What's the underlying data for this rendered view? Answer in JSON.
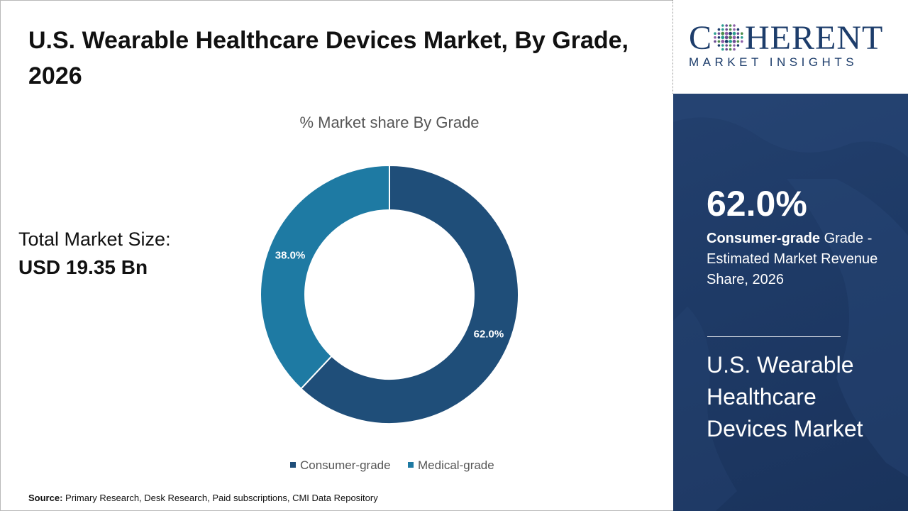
{
  "page": {
    "title": "U.S. Wearable Healthcare Devices Market, By Grade, 2026",
    "total_label": "Total Market Size:",
    "total_value": "USD 19.35 Bn",
    "source_label": "Source:",
    "source_text": " Primary Research, Desk Research, Paid subscriptions, CMI Data Repository"
  },
  "logo": {
    "word_prefix": "C",
    "word_suffix": "HERENT",
    "sub": "MARKET INSIGHTS"
  },
  "panel": {
    "big_value": "62.0%",
    "highlight": "Consumer-grade",
    "desc": " Grade - Estimated Market Revenue Share, 2026",
    "market_name": "U.S. Wearable Healthcare Devices Market"
  },
  "colors": {
    "consumer": "#1f4e79",
    "medical": "#1e7aa3",
    "panel_bg": "#1e3a66",
    "logo_blue": "#1d3d6b"
  },
  "chart_data": {
    "type": "pie",
    "style": "donut",
    "title": "% Market share By Grade",
    "categories": [
      "Consumer-grade",
      "Medical-grade"
    ],
    "values": [
      62.0,
      38.0
    ],
    "labels": [
      "62.0%",
      "38.0%"
    ],
    "legend_position": "bottom"
  }
}
